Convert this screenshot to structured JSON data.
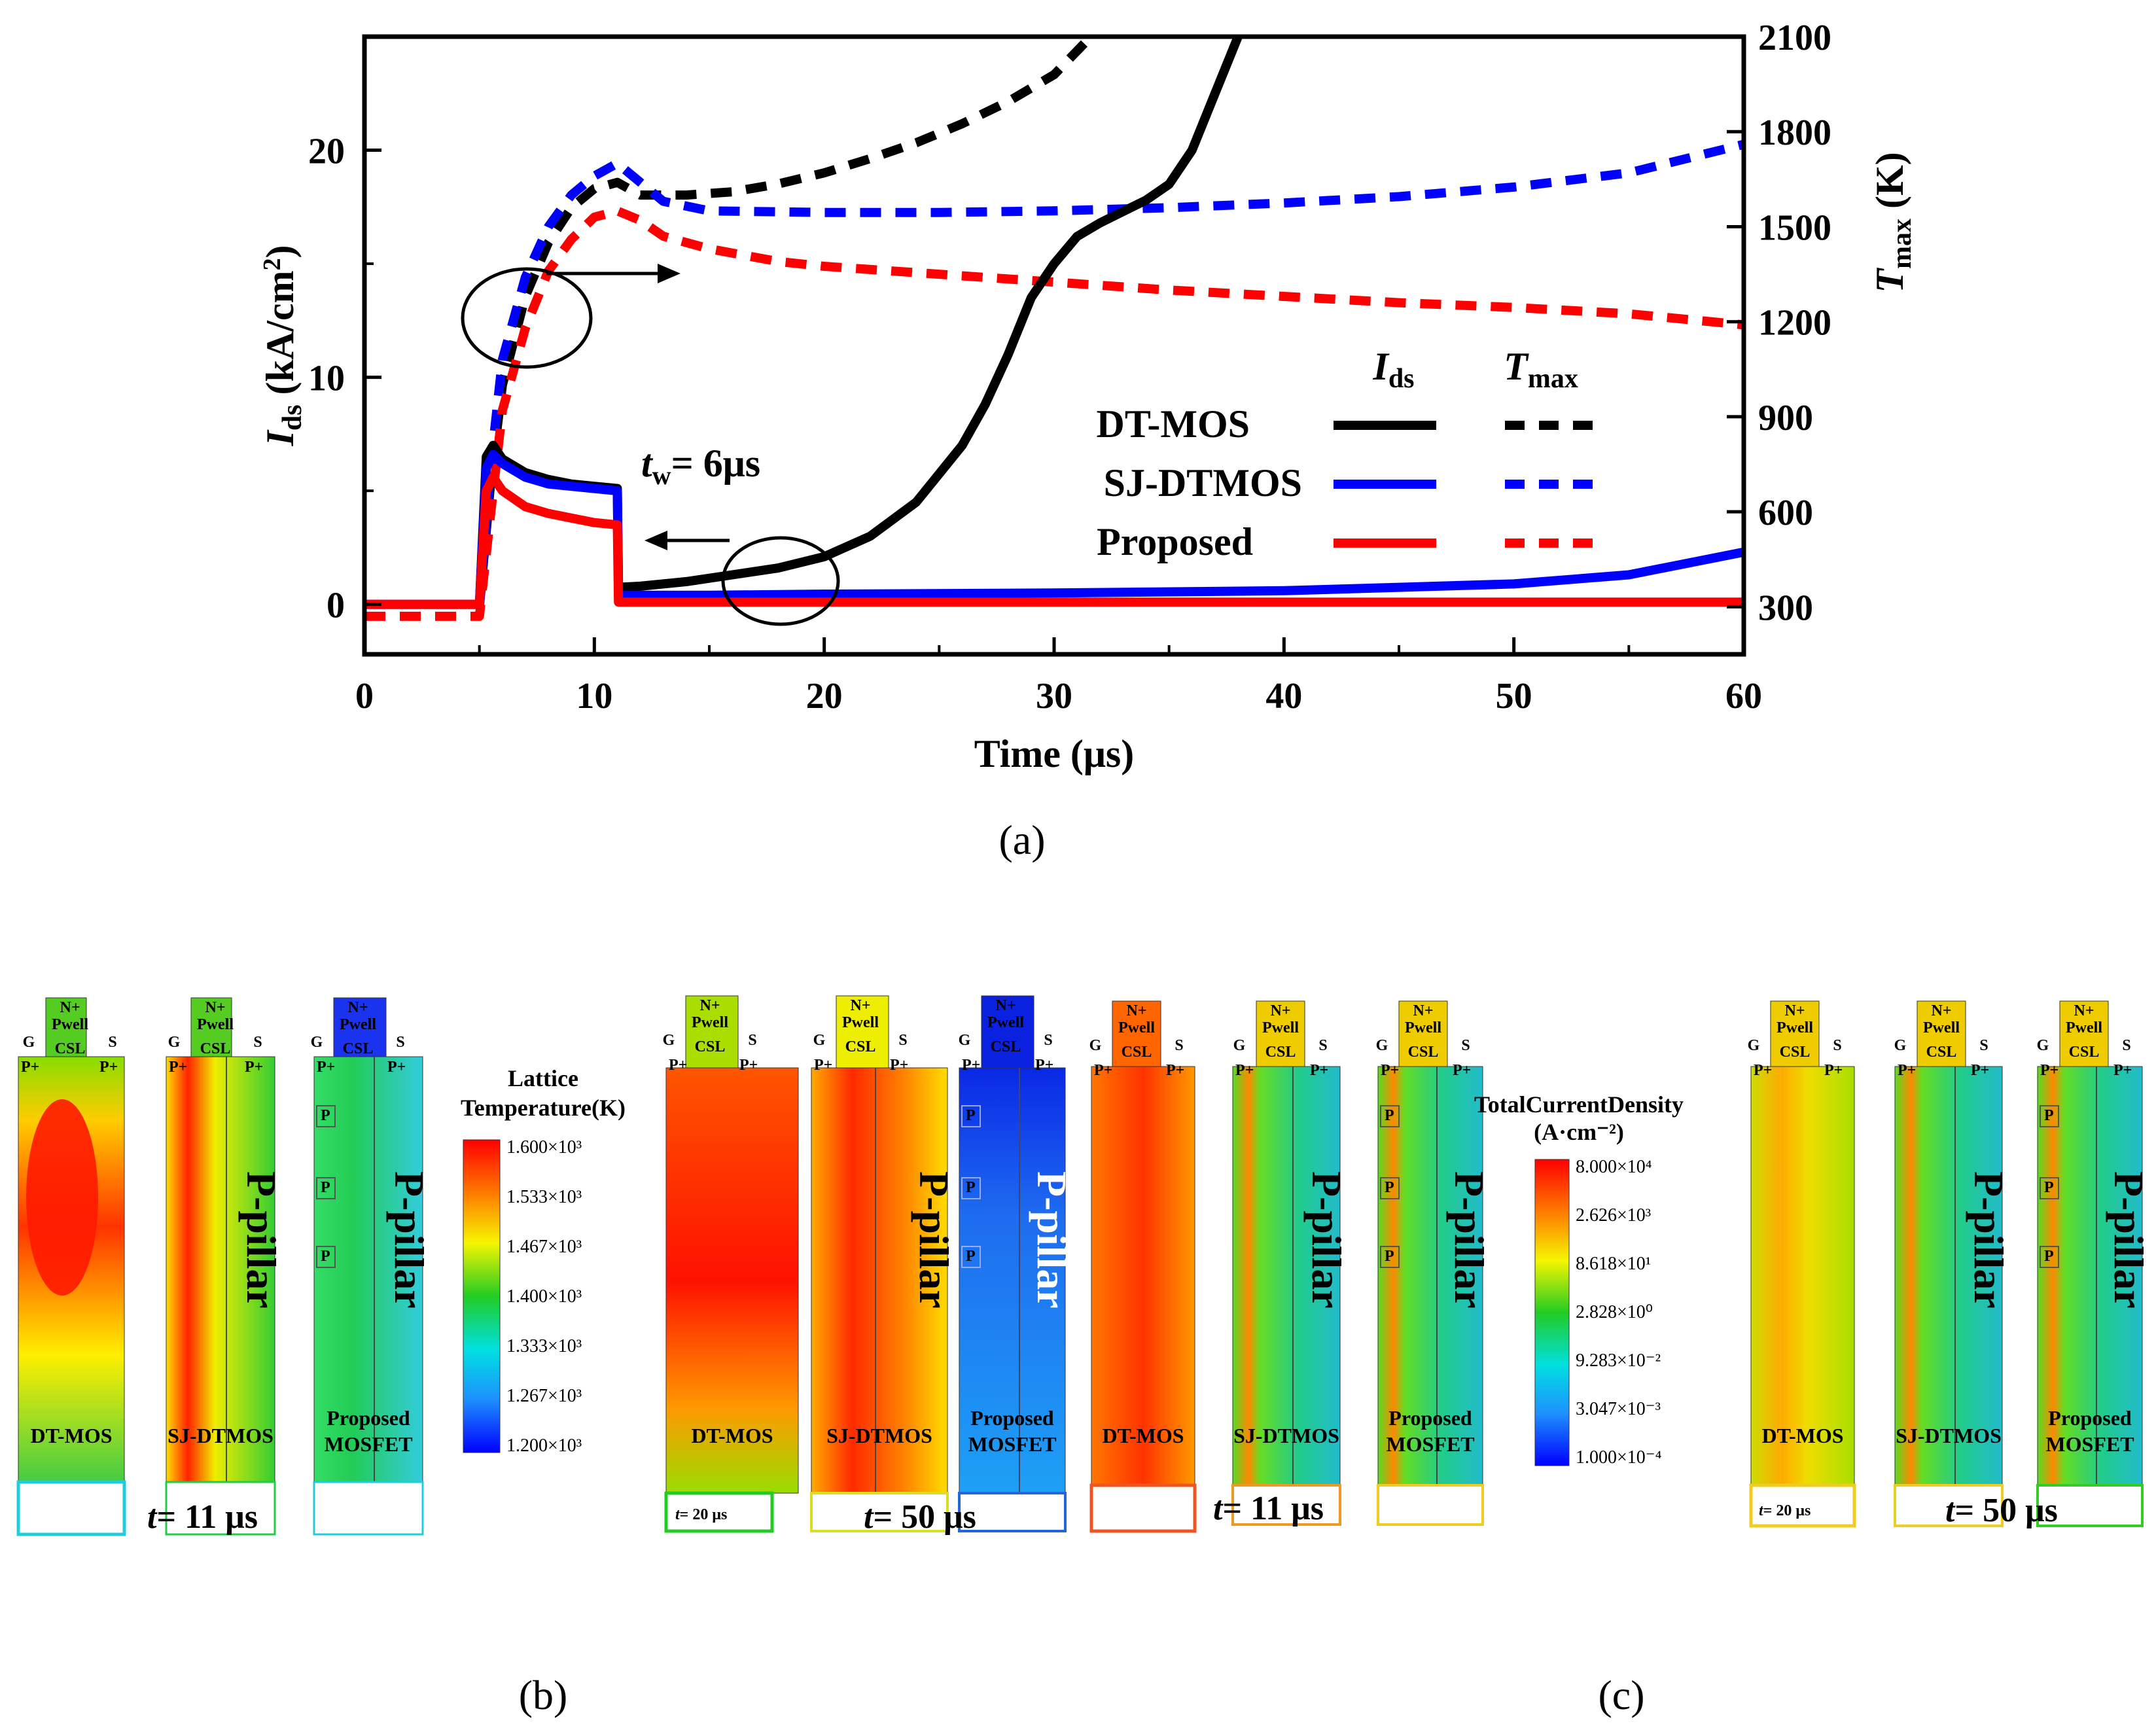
{
  "chart_data": {
    "type": "line",
    "panel_label": "(a)",
    "xlabel": "Time (μs)",
    "ylabel_left": {
      "main": "I",
      "sub": "ds",
      "unit_open": " (kA/cm",
      "unit_sup": "2",
      "unit_close": ")"
    },
    "ylabel_right": {
      "main": "T",
      "sub": "max",
      "unit": " (K)"
    },
    "xlim": [
      0,
      60
    ],
    "ylim_left": [
      -2.2,
      25
    ],
    "ylim_right": [
      150,
      2100
    ],
    "x_ticks": [
      0,
      10,
      20,
      30,
      40,
      50,
      60
    ],
    "x_tick_labels": [
      "0",
      "10",
      "20",
      "30",
      "40",
      "50",
      "60"
    ],
    "y_left_ticks": [
      0,
      10,
      20
    ],
    "y_left_tick_labels": [
      "0",
      "10",
      "20"
    ],
    "y_right_ticks": [
      300,
      600,
      900,
      1200,
      1500,
      1800,
      2100
    ],
    "y_right_tick_labels": [
      "300",
      "600",
      "900",
      "1200",
      "1500",
      "1800",
      "2100"
    ],
    "legend": {
      "col_ids": {
        "main": "I",
        "sub": "ds"
      },
      "col_tmax": {
        "main": "T",
        "sub": "max"
      },
      "rows": [
        "DT-MOS",
        "SJ-DTMOS",
        "Proposed"
      ]
    },
    "annotation": {
      "t": "t",
      "sub": "w",
      "rest": "= 6μs"
    },
    "series": [
      {
        "name": "DT-MOS",
        "quantity": "Ids",
        "axis": "left",
        "color": "#000000",
        "style": "solid",
        "x": [
          0,
          5,
          5.3,
          5.6,
          6,
          7,
          8,
          9,
          10,
          11,
          11.05,
          12,
          14,
          16,
          18,
          20,
          22,
          24,
          26,
          27,
          28,
          29,
          30,
          31,
          32,
          33,
          34,
          35,
          36,
          37,
          38
        ],
        "y": [
          0,
          0,
          6.5,
          7.0,
          6.4,
          5.8,
          5.5,
          5.3,
          5.2,
          5.1,
          0.75,
          0.8,
          1.0,
          1.3,
          1.6,
          2.1,
          3.0,
          4.5,
          7.0,
          8.8,
          11.0,
          13.5,
          15.0,
          16.2,
          16.8,
          17.3,
          17.8,
          18.5,
          20.0,
          22.5,
          25.0
        ]
      },
      {
        "name": "SJ-DTMOS",
        "quantity": "Ids",
        "axis": "left",
        "color": "#0000ff",
        "style": "solid",
        "x": [
          0,
          5,
          5.3,
          5.6,
          6,
          7,
          8,
          9,
          10,
          11,
          11.05,
          15,
          20,
          30,
          40,
          50,
          55,
          60
        ],
        "y": [
          0,
          0,
          6.0,
          6.6,
          6.2,
          5.6,
          5.3,
          5.2,
          5.1,
          5.0,
          0.4,
          0.4,
          0.45,
          0.5,
          0.6,
          0.9,
          1.3,
          2.3
        ]
      },
      {
        "name": "Proposed",
        "quantity": "Ids",
        "axis": "left",
        "color": "#ff0000",
        "style": "solid",
        "x": [
          0,
          5,
          5.3,
          5.6,
          6,
          7,
          8,
          9,
          10,
          11,
          11.05,
          20,
          30,
          40,
          50,
          60
        ],
        "y": [
          0,
          0,
          5.0,
          5.6,
          5.0,
          4.3,
          4.0,
          3.8,
          3.6,
          3.5,
          0.1,
          0.1,
          0.1,
          0.1,
          0.1,
          0.1
        ]
      },
      {
        "name": "DT-MOS",
        "quantity": "Tmax",
        "axis": "right",
        "color": "#000000",
        "style": "dashed",
        "x": [
          5,
          5.5,
          6,
          7,
          8,
          9,
          10,
          11,
          12,
          14,
          16,
          18,
          20,
          22,
          24,
          26,
          28,
          30,
          31.6
        ],
        "y": [
          300,
          700,
          1000,
          1280,
          1450,
          1560,
          1620,
          1640,
          1600,
          1600,
          1610,
          1635,
          1670,
          1715,
          1765,
          1825,
          1895,
          1980,
          2100
        ]
      },
      {
        "name": "SJ-DTMOS",
        "quantity": "Tmax",
        "axis": "right",
        "color": "#0000ff",
        "style": "dashed",
        "x": [
          5,
          5.5,
          6,
          7,
          8,
          9,
          10,
          11,
          12,
          13,
          15,
          20,
          25,
          30,
          35,
          40,
          45,
          50,
          55,
          60
        ],
        "y": [
          300,
          750,
          1080,
          1340,
          1500,
          1600,
          1660,
          1700,
          1640,
          1580,
          1550,
          1545,
          1545,
          1550,
          1560,
          1575,
          1595,
          1625,
          1670,
          1760
        ]
      },
      {
        "name": "Proposed",
        "quantity": "Tmax",
        "axis": "right",
        "color": "#ff0000",
        "style": "dashed",
        "x": [
          0,
          5,
          5.5,
          6,
          7,
          8,
          9,
          10,
          11,
          12,
          13,
          15,
          18,
          20,
          25,
          30,
          35,
          40,
          45,
          50,
          55,
          60
        ],
        "y": [
          270,
          270,
          600,
          920,
          1180,
          1360,
          1460,
          1530,
          1550,
          1520,
          1470,
          1430,
          1390,
          1375,
          1350,
          1325,
          1300,
          1280,
          1260,
          1245,
          1225,
          1190
        ]
      }
    ]
  },
  "panel_b": {
    "panel_label": "(b)",
    "scale_title_1": "Lattice",
    "scale_title_2": "Temperature(K)",
    "scale_ticks": [
      "1.600×10³",
      "1.533×10³",
      "1.467×10³",
      "1.400×10³",
      "1.333×10³",
      "1.267×10³",
      "1.200×10³"
    ],
    "time_left": "= 11 μs",
    "time_right": "= 50 μs",
    "time_small": "= 20 μs",
    "devices": [
      "DT-MOS",
      "SJ-DTMOS",
      "Proposed",
      "MOSFET"
    ],
    "pillar": "P-pillar",
    "labels": {
      "n": "N+",
      "pwell": "Pwell",
      "csl": "CSL",
      "g": "G",
      "s": "S",
      "pplus": "P+",
      "p": "P",
      "t": "t"
    }
  },
  "panel_c": {
    "panel_label": "(c)",
    "scale_title_1": "TotalCurrentDensity",
    "scale_title_2": "(A·cm⁻²)",
    "scale_ticks": [
      "8.000×10⁴",
      "2.626×10³",
      "8.618×10¹",
      "2.828×10⁰",
      "9.283×10⁻²",
      "3.047×10⁻³",
      "1.000×10⁻⁴"
    ],
    "time_left": "= 11 μs",
    "time_right": "= 50 μs",
    "time_small": "= 20 μs"
  }
}
